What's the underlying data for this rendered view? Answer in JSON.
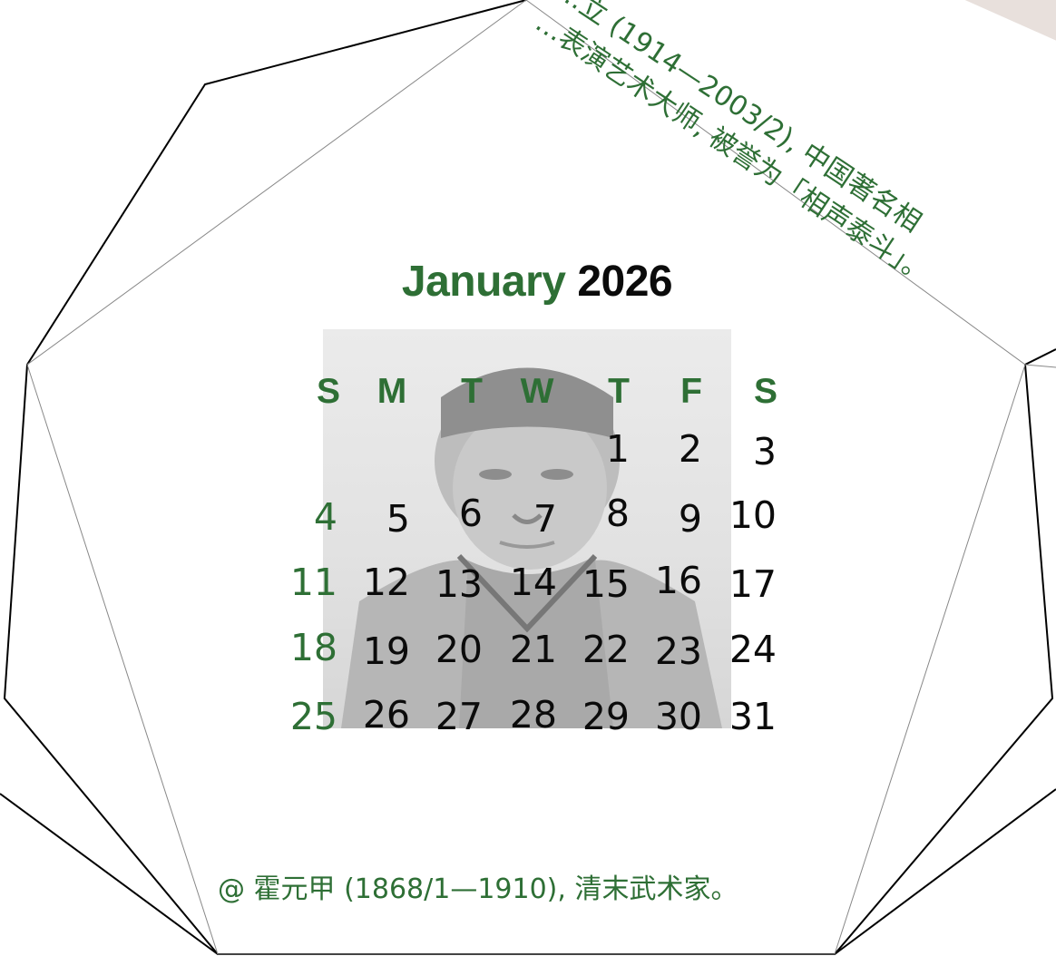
{
  "calendar": {
    "month": "January",
    "year": "2026",
    "weekdays": [
      "S",
      "M",
      "T",
      "W",
      "T",
      "F",
      "S"
    ],
    "weeks": [
      [
        "",
        "",
        "",
        "",
        "1",
        "2",
        "3"
      ],
      [
        "4",
        "5",
        "6",
        "7",
        "8",
        "9",
        "10"
      ],
      [
        "11",
        "12",
        "13",
        "14",
        "15",
        "16",
        "17"
      ],
      [
        "18",
        "19",
        "20",
        "21",
        "22",
        "23",
        "24"
      ],
      [
        "25",
        "26",
        "27",
        "28",
        "29",
        "30",
        "31"
      ]
    ]
  },
  "caption": "@ 霍元甲 (1868/1—1910), 清末武术家。",
  "top_note": {
    "line1": "…立 (1914—2003/2), 中国著名相",
    "line2": "…表演艺术大师, 被誉为「相声泰斗」。"
  },
  "colors": {
    "accent": "#2e6f35",
    "text": "#0b0b0b"
  }
}
